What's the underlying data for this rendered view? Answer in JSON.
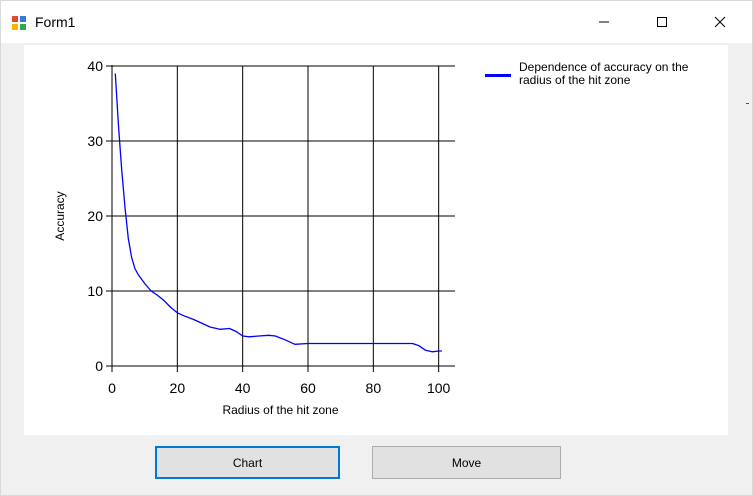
{
  "window": {
    "title": "Form1",
    "icons": {
      "app": "form-app-icon",
      "minimize": "minimize-icon",
      "maximize": "maximize-icon",
      "close": "close-icon"
    }
  },
  "buttons": {
    "chart_label": "Chart",
    "move_label": "Move"
  },
  "colors": {
    "series": "#0000ff",
    "focus_border": "#0078d7",
    "button_bg": "#e1e1e1"
  },
  "chart_data": {
    "type": "line",
    "xlabel": "Radius of the hit zone",
    "ylabel": "Accuracy",
    "xlim": [
      0,
      105
    ],
    "ylim": [
      0,
      40
    ],
    "x_ticks": [
      0,
      20,
      40,
      60,
      80,
      100
    ],
    "y_ticks": [
      0,
      10,
      20,
      30,
      40
    ],
    "grid": true,
    "legend": "top-right",
    "series": [
      {
        "name": "Dependence of accuracy on the radius of the hit zone",
        "color": "#0000ff",
        "x": [
          1,
          2,
          3,
          4,
          5,
          6,
          7,
          8,
          9,
          10,
          12,
          14,
          16,
          18,
          20,
          22,
          25,
          28,
          30,
          33,
          36,
          38,
          40,
          42,
          45,
          48,
          50,
          53,
          56,
          60,
          65,
          70,
          75,
          80,
          85,
          90,
          92,
          94,
          96,
          98,
          100,
          101
        ],
        "values": [
          39,
          32,
          26,
          21,
          17,
          14.5,
          13,
          12.2,
          11.6,
          11,
          10,
          9.4,
          8.7,
          7.8,
          7.1,
          6.7,
          6.2,
          5.6,
          5.2,
          4.9,
          5.0,
          4.6,
          4.0,
          3.9,
          4.0,
          4.1,
          4.0,
          3.5,
          2.9,
          3.0,
          3.0,
          3.0,
          3.0,
          3.0,
          3.0,
          3.0,
          3.0,
          2.7,
          2.1,
          1.9,
          2.0,
          2.0
        ]
      }
    ]
  }
}
